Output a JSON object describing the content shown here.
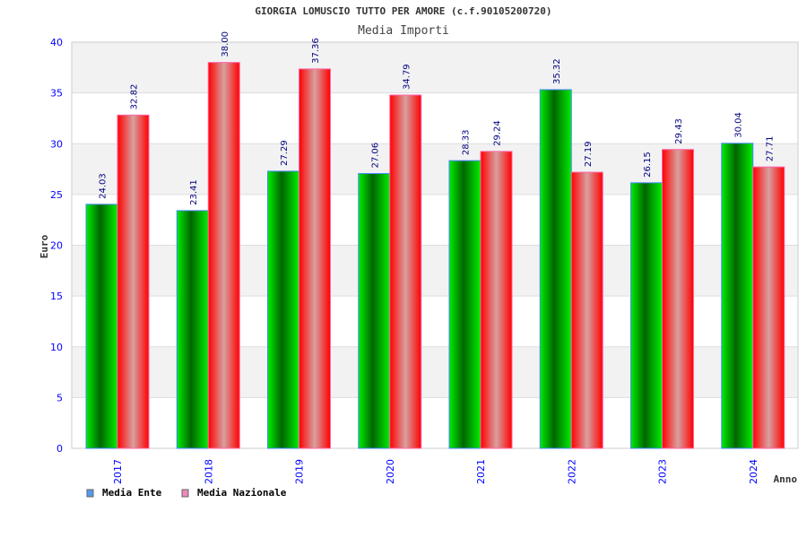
{
  "chart_data": {
    "type": "bar",
    "title": "GIORGIA LOMUSCIO TUTTO PER AMORE (c.f.90105200720)",
    "subtitle": "Media Importi",
    "xlabel": "Anno",
    "ylabel": "Euro",
    "ylim": [
      0,
      40
    ],
    "yticks": [
      "0",
      "5",
      "10",
      "15",
      "20",
      "25",
      "30",
      "35",
      "40"
    ],
    "grid": true,
    "legend_position": "bottom-left",
    "categories": [
      "2017",
      "2018",
      "2019",
      "2020",
      "2021",
      "2022",
      "2023",
      "2024"
    ],
    "series": [
      {
        "name": "Media Ente",
        "values": [
          24.03,
          23.41,
          27.29,
          27.06,
          28.33,
          35.32,
          26.15,
          30.04
        ],
        "labels": [
          "24.03",
          "23.41",
          "27.29",
          "27.06",
          "28.33",
          "35.32",
          "26.15",
          "30.04"
        ],
        "color": "#00cc00",
        "legend_color": "#5599ee"
      },
      {
        "name": "Media Nazionale",
        "values": [
          32.82,
          38.0,
          37.36,
          34.79,
          29.24,
          27.19,
          29.43,
          27.71
        ],
        "labels": [
          "32.82",
          "38.00",
          "37.36",
          "34.79",
          "29.24",
          "27.19",
          "29.43",
          "27.71"
        ],
        "color": "#ff0000",
        "legend_color": "#ee88bb"
      }
    ]
  }
}
